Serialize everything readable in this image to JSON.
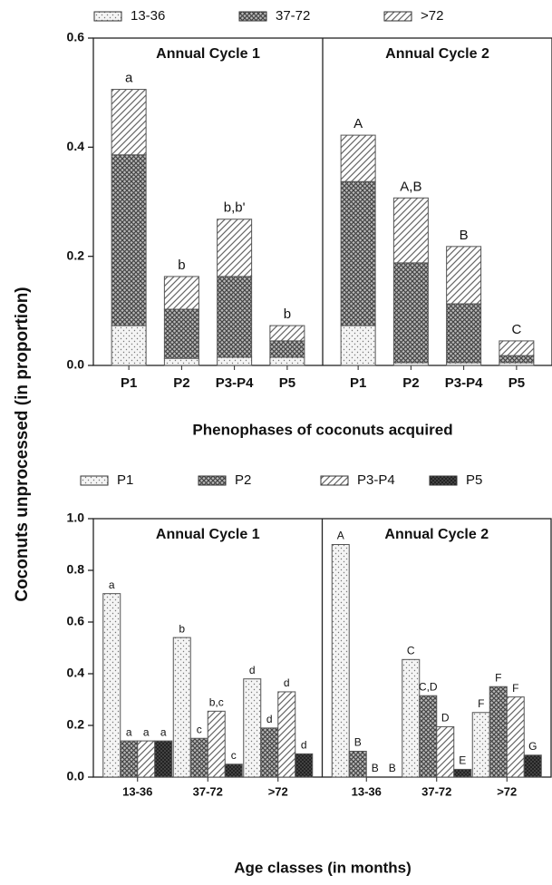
{
  "chart_data": [
    {
      "type": "stacked-bar",
      "ylabel": "Coconuts unprocessed (in proportion)",
      "xlabel": "Phenophases of coconuts acquired",
      "ylim": [
        0,
        0.6
      ],
      "yticks": [
        {
          "value": 0,
          "label": "0.0"
        },
        0.2,
        0.4,
        0.6
      ],
      "series": [
        {
          "name": "13-36",
          "pattern": "dots"
        },
        {
          "name": "37-72",
          "pattern": "crosshatch"
        },
        {
          "name": ">72",
          "pattern": "diagonal"
        }
      ],
      "panels": [
        {
          "title": "Annual Cycle 1",
          "categories": [
            "P1",
            "P2",
            "P3-P4",
            "P5"
          ],
          "values": [
            [
              0.073,
              0.013,
              0.015,
              0.015
            ],
            [
              0.313,
              0.09,
              0.148,
              0.03
            ],
            [
              0.12,
              0.06,
              0.105,
              0.028
            ]
          ],
          "annotations": [
            "a",
            "b",
            "b,b'",
            "b"
          ]
        },
        {
          "title": "Annual Cycle 2",
          "categories": [
            "P1",
            "P2",
            "P3-P4",
            "P5"
          ],
          "values": [
            [
              0.073,
              0.005,
              0.005,
              0.005
            ],
            [
              0.264,
              0.183,
              0.108,
              0.013
            ],
            [
              0.085,
              0.119,
              0.105,
              0.027
            ]
          ],
          "annotations": [
            "A",
            "A,B",
            "B",
            "C"
          ]
        }
      ]
    },
    {
      "type": "grouped-bar",
      "xlabel": "Age classes (in months)",
      "ylim": [
        0,
        1
      ],
      "yticks": [
        {
          "value": 0,
          "label": "0.0"
        },
        0.2,
        0.4,
        0.6,
        0.8,
        {
          "value": 1,
          "label": "1.0"
        }
      ],
      "series": [
        {
          "name": "P1",
          "pattern": "dots"
        },
        {
          "name": "P2",
          "pattern": "crosshatch"
        },
        {
          "name": "P3-P4",
          "pattern": "diagonal"
        },
        {
          "name": "P5",
          "pattern": "dense"
        }
      ],
      "panels": [
        {
          "title": "Annual Cycle 1",
          "categories": [
            "13-36",
            "37-72",
            ">72"
          ],
          "values": [
            [
              0.71,
              0.54,
              0.38
            ],
            [
              0.14,
              0.15,
              0.19
            ],
            [
              0.14,
              0.255,
              0.33
            ],
            [
              0.14,
              0.05,
              0.09
            ]
          ],
          "annotations": [
            [
              "a",
              "b",
              "d"
            ],
            [
              "a",
              "c",
              "d"
            ],
            [
              "a",
              "b,c",
              "d"
            ],
            [
              "a",
              "c",
              "d"
            ]
          ]
        },
        {
          "title": "Annual Cycle 2",
          "categories": [
            "13-36",
            "37-72",
            ">72"
          ],
          "values": [
            [
              0.9,
              0.455,
              0.25
            ],
            [
              0.1,
              0.315,
              0.35
            ],
            [
              0,
              0.195,
              0.31
            ],
            [
              0,
              0.03,
              0.085
            ]
          ],
          "annotations": [
            [
              "A",
              "C",
              "F"
            ],
            [
              "B",
              "C,D",
              "F"
            ],
            [
              "B",
              "D",
              "F"
            ],
            [
              "B",
              "E",
              "G"
            ]
          ]
        }
      ]
    }
  ]
}
